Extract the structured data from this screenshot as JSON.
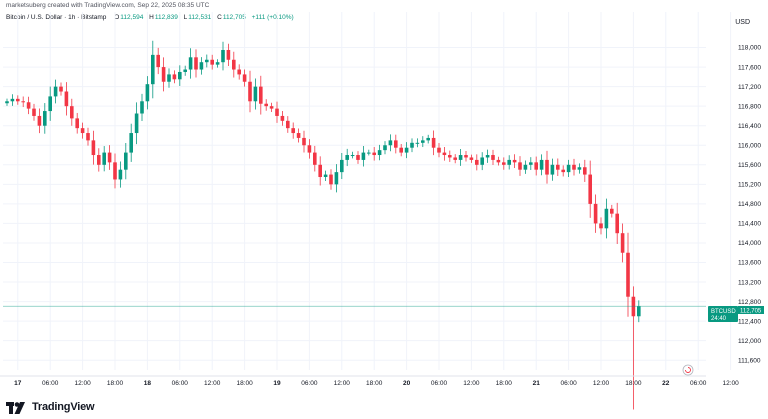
{
  "header": {
    "attribution": "marketsuberg created with TradingView.com, Sep 22, 2025 08:35 UTC"
  },
  "legend": {
    "symbol_desc": "Bitcoin / U.S. Dollar · 1h · Bitstamp",
    "open_label": "O",
    "open": "112,594",
    "high_label": "H",
    "high": "112,839",
    "low_label": "L",
    "low": "112,531",
    "close_label": "C",
    "close": "112,705",
    "change": "+111 (+0.10%)"
  },
  "currency": "USD",
  "price_tag": {
    "symbol": "BTCUSD",
    "price": "112,705",
    "countdown": "24:40"
  },
  "logo_text": "TradingView",
  "colors": {
    "up": "#089981",
    "down": "#f23645",
    "grid": "#f0f3fa",
    "axis_text": "#131722",
    "last_line": "#089981"
  },
  "chart_data": {
    "type": "candlestick",
    "title": "",
    "ylim": [
      111400,
      118400
    ],
    "yticks": [
      "111,600",
      "112,000",
      "112,400",
      "112,800",
      "113,200",
      "113,600",
      "114,000",
      "114,400",
      "114,800",
      "115,200",
      "115,600",
      "116,000",
      "116,400",
      "116,800",
      "117,200",
      "117,600",
      "118,000"
    ],
    "ytick_values": [
      111600,
      112000,
      112400,
      112800,
      113200,
      113600,
      114000,
      114400,
      114800,
      115200,
      115600,
      116000,
      116400,
      116800,
      117200,
      117600,
      118000
    ],
    "xticks": [
      {
        "label": "17",
        "day": true,
        "idx": 2
      },
      {
        "label": "06:00",
        "idx": 8
      },
      {
        "label": "12:00",
        "idx": 14
      },
      {
        "label": "18:00",
        "idx": 20
      },
      {
        "label": "18",
        "day": true,
        "idx": 26
      },
      {
        "label": "06:00",
        "idx": 32
      },
      {
        "label": "12:00",
        "idx": 38
      },
      {
        "label": "18:00",
        "idx": 44
      },
      {
        "label": "19",
        "day": true,
        "idx": 50
      },
      {
        "label": "06:00",
        "idx": 56
      },
      {
        "label": "12:00",
        "idx": 62
      },
      {
        "label": "18:00",
        "idx": 68
      },
      {
        "label": "20",
        "day": true,
        "idx": 74
      },
      {
        "label": "06:00",
        "idx": 80
      },
      {
        "label": "12:00",
        "idx": 86
      },
      {
        "label": "18:00",
        "idx": 92
      },
      {
        "label": "21",
        "day": true,
        "idx": 98
      },
      {
        "label": "06:00",
        "idx": 104
      },
      {
        "label": "12:00",
        "idx": 110
      },
      {
        "label": "18:00",
        "idx": 116
      },
      {
        "label": "22",
        "day": true,
        "idx": 122
      },
      {
        "label": "06:00",
        "idx": 128
      },
      {
        "label": "12:00",
        "idx": 134
      }
    ],
    "last_price": 112705,
    "closes": [
      116900,
      116950,
      116900,
      116880,
      116750,
      116600,
      116400,
      116700,
      117000,
      117200,
      117100,
      116800,
      116550,
      116350,
      116250,
      116100,
      115800,
      115600,
      115850,
      115650,
      115300,
      115500,
      115850,
      116250,
      116650,
      116900,
      117250,
      117850,
      117600,
      117300,
      117450,
      117350,
      117500,
      117550,
      117800,
      117550,
      117700,
      117750,
      117650,
      117700,
      117950,
      117750,
      117550,
      117450,
      117300,
      116900,
      117200,
      116850,
      116800,
      116750,
      116600,
      116500,
      116350,
      116250,
      116150,
      116000,
      115850,
      115600,
      115350,
      115400,
      115200,
      115450,
      115700,
      115800,
      115800,
      115700,
      115850,
      115850,
      115800,
      115900,
      116000,
      116100,
      115950,
      115850,
      115950,
      116050,
      116050,
      116100,
      116150,
      115950,
      115850,
      115800,
      115750,
      115700,
      115800,
      115750,
      115700,
      115600,
      115750,
      115800,
      115700,
      115650,
      115600,
      115700,
      115650,
      115500,
      115600,
      115650,
      115500,
      115700,
      115400,
      115600,
      115500,
      115450,
      115600,
      115500,
      115550,
      115400,
      114800,
      114400,
      114300,
      114700,
      114600,
      114200,
      113800,
      112900,
      112500,
      112705
    ]
  }
}
